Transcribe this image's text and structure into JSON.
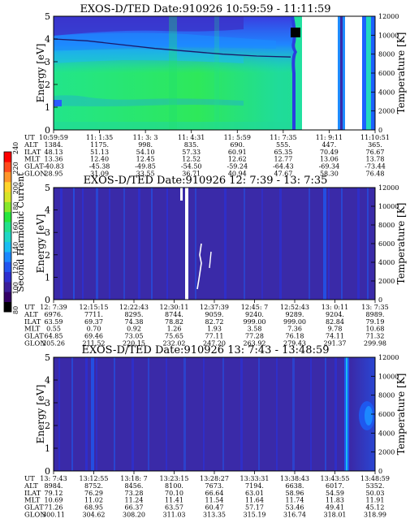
{
  "colorbar": {
    "label": "Second Harmonic Current",
    "ticks": [
      "80",
      "100",
      "120",
      "140",
      "160",
      "180",
      "200",
      "220",
      "240"
    ],
    "colors": [
      "#000000",
      "#330066",
      "#3a1e99",
      "#2d2fcf",
      "#2355ef",
      "#1c88ff",
      "#19bdf2",
      "#1fd6c6",
      "#22e08c",
      "#25e63d",
      "#86e72a",
      "#d6e428",
      "#ffd42a",
      "#ff952a",
      "#ff4a1d",
      "#ff0000"
    ]
  },
  "panels": [
    {
      "title": "EXOS-D/TED   Date:910926  10:59:59 - 11:11:59",
      "palette": "#2a6ff2",
      "row_labels": [
        "UT",
        "ALT",
        "ILAT",
        "MLT",
        "GLAT",
        "GLON"
      ],
      "columns": [
        [
          "10:59:59",
          "1384.",
          "48.13",
          "13.36",
          "-40.83",
          "28.95"
        ],
        [
          "11: 1:35",
          "1175.",
          "51.13",
          "12.40",
          "-45.38",
          "31.09"
        ],
        [
          "11: 3: 3",
          "998.",
          "54.10",
          "12.45",
          "-49.85",
          "33.55"
        ],
        [
          "11: 4:31",
          "835.",
          "57.33",
          "12.52",
          "-54.50",
          "36.71"
        ],
        [
          "11: 5:59",
          "690.",
          "60.91",
          "12.62",
          "-59.24",
          "40.94"
        ],
        [
          "11: 7:35",
          "555.",
          "65.35",
          "12.77",
          "-64.43",
          "47.67"
        ],
        [
          "11: 9:11",
          "447.",
          "70.49",
          "13.06",
          "-69.34",
          "58.30"
        ],
        [
          "11:10:51",
          "365.",
          "76.67",
          "13.78",
          "-73.44",
          "76.48"
        ]
      ]
    },
    {
      "title": "EXOS-D/TED   Date:910926  12: 7:39 - 13: 7:35",
      "palette": "#3a2aa8",
      "row_labels": [
        "UT",
        "ALT",
        "ILAT",
        "MLT",
        "GLAT",
        "GLON"
      ],
      "columns": [
        [
          "12: 7:39",
          "6976.",
          "63.59",
          "0.55",
          "64.85",
          "205.26"
        ],
        [
          "12:15:15",
          "7711.",
          "69.37",
          "0.70",
          "69.46",
          "211.52"
        ],
        [
          "12:22:43",
          "8295.",
          "74.38",
          "0.92",
          "73.05",
          "220.15"
        ],
        [
          "12:30:11",
          "8744.",
          "78.82",
          "1.26",
          "75.65",
          "232.02"
        ],
        [
          "12:37:39",
          "9059.",
          "82.72",
          "1.93",
          "77.11",
          "247.20"
        ],
        [
          "12:45: 7",
          "9240.",
          "999.00",
          "3.58",
          "77.28",
          "263.92"
        ],
        [
          "12:52:43",
          "9289.",
          "999.00",
          "7.36",
          "76.18",
          "279.43"
        ],
        [
          "13: 0:11",
          "9204.",
          "82.84",
          "9.78",
          "74.11",
          "291.37"
        ],
        [
          "13: 7:35",
          "8989.",
          "79.19",
          "10.68",
          "71.32",
          "299.98"
        ]
      ]
    },
    {
      "title": "EXOS-D/TED   Date:910926  13: 7:43 - 13:48:59",
      "palette": "#3a2aa8",
      "row_labels": [
        "UT",
        "ALT",
        "ILAT",
        "MLT",
        "GLAT",
        "GLON"
      ],
      "columns": [
        [
          "13: 7:43",
          "8984.",
          "79.12",
          "10.69",
          "71.26",
          "300.11"
        ],
        [
          "13:12:55",
          "8752.",
          "76.29",
          "11.02",
          "68.95",
          "304.62"
        ],
        [
          "13:18: 7",
          "8456.",
          "73.28",
          "11.24",
          "66.37",
          "308.20"
        ],
        [
          "13:23:15",
          "8100.",
          "70.10",
          "11.41",
          "63.57",
          "311.03"
        ],
        [
          "13:28:27",
          "7673.",
          "66.64",
          "11.54",
          "60.47",
          "313.35"
        ],
        [
          "13:33:31",
          "7194.",
          "63.01",
          "11.64",
          "57.17",
          "315.19"
        ],
        [
          "13:38:43",
          "6638.",
          "58.96",
          "11.74",
          "53.46",
          "316.74"
        ],
        [
          "13:43:55",
          "6017.",
          "54.59",
          "11.83",
          "49.41",
          "318.01"
        ],
        [
          "13:48:59",
          "5352.",
          "50.03",
          "11.91",
          "45.12",
          "318.99"
        ]
      ]
    }
  ],
  "axes": {
    "left_label": "Energy [eV]",
    "right_label": "Temperature [K]",
    "left_ticks": [
      "0",
      "1",
      "2",
      "3",
      "4",
      "5"
    ],
    "right_ticks": [
      "0",
      "2000",
      "4000",
      "6000",
      "8000",
      "10000",
      "12000"
    ]
  },
  "chart_data": [
    {
      "type": "heatmap",
      "title": "EXOS-D/TED   Date:910926  10:59:59 - 11:11:59",
      "ylabel": "Energy [eV]",
      "ylim": [
        0,
        5
      ],
      "y2label": "Temperature [K]",
      "y2lim": [
        0,
        12000
      ],
      "x": [
        "10:59:59",
        "11: 1:35",
        "11: 3: 3",
        "11: 4:31",
        "11: 5:59",
        "11: 7:35",
        "11: 9:11",
        "11:10:51"
      ],
      "color_scale": {
        "label": "Second Harmonic Current",
        "range": [
          80,
          240
        ]
      },
      "temperature_trace_K": [
        9600,
        9400,
        9000,
        8600,
        8300,
        8000,
        7800,
        7700
      ],
      "data_gap": [
        "11: 7:35",
        "11:10:51"
      ]
    },
    {
      "type": "heatmap",
      "title": "EXOS-D/TED   Date:910926  12: 7:39 - 13: 7:35",
      "ylabel": "Energy [eV]",
      "ylim": [
        0,
        5
      ],
      "y2label": "Temperature [K]",
      "y2lim": [
        0,
        12000
      ],
      "x": [
        "12: 7:39",
        "12:15:15",
        "12:22:43",
        "12:30:11",
        "12:37:39",
        "12:45: 7",
        "12:52:43",
        "13: 0:11",
        "13: 7:35"
      ],
      "color_scale": {
        "label": "Second Harmonic Current",
        "range": [
          80,
          240
        ]
      }
    },
    {
      "type": "heatmap",
      "title": "EXOS-D/TED   Date:910926  13: 7:43 - 13:48:59",
      "ylabel": "Energy [eV]",
      "ylim": [
        0,
        5
      ],
      "y2label": "Temperature [K]",
      "y2lim": [
        0,
        12000
      ],
      "x": [
        "13: 7:43",
        "13:12:55",
        "13:18: 7",
        "13:23:15",
        "13:28:27",
        "13:33:31",
        "13:38:43",
        "13:43:55",
        "13:48:59"
      ],
      "color_scale": {
        "label": "Second Harmonic Current",
        "range": [
          80,
          240
        ]
      }
    }
  ]
}
